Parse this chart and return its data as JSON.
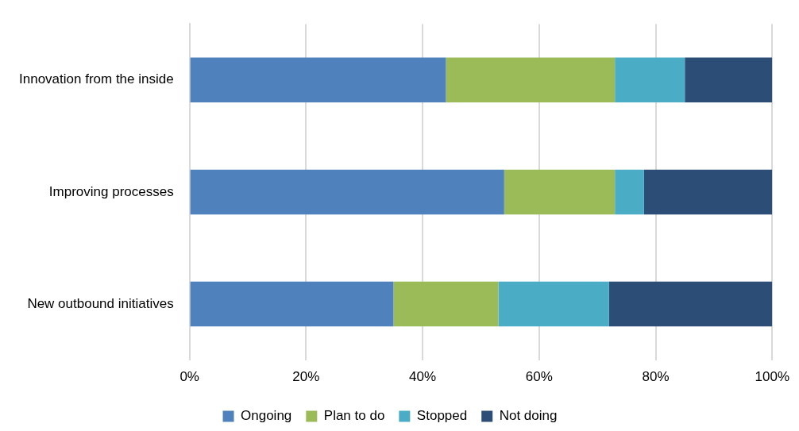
{
  "chart_data": {
    "type": "bar",
    "orientation": "horizontal",
    "stacked": true,
    "categories": [
      "Innovation from the inside",
      "Improving processes",
      "New outbound initiatives"
    ],
    "series": [
      {
        "name": "Ongoing",
        "color": "#4f81bd",
        "values": [
          44,
          54,
          35
        ]
      },
      {
        "name": "Plan to do",
        "color": "#9bbb59",
        "values": [
          29,
          19,
          18
        ]
      },
      {
        "name": "Stopped",
        "color": "#4bacc6",
        "values": [
          12,
          5,
          19
        ]
      },
      {
        "name": "Not doing",
        "color": "#2c4d75",
        "values": [
          15,
          22,
          28
        ]
      }
    ],
    "xlim": [
      0,
      100
    ],
    "xticks": [
      {
        "value": 0,
        "label": "0%"
      },
      {
        "value": 20,
        "label": "20%"
      },
      {
        "value": 40,
        "label": "40%"
      },
      {
        "value": 60,
        "label": "60%"
      },
      {
        "value": 80,
        "label": "80%"
      },
      {
        "value": 100,
        "label": "100%"
      }
    ],
    "grid": "x",
    "legend": "bottom"
  }
}
